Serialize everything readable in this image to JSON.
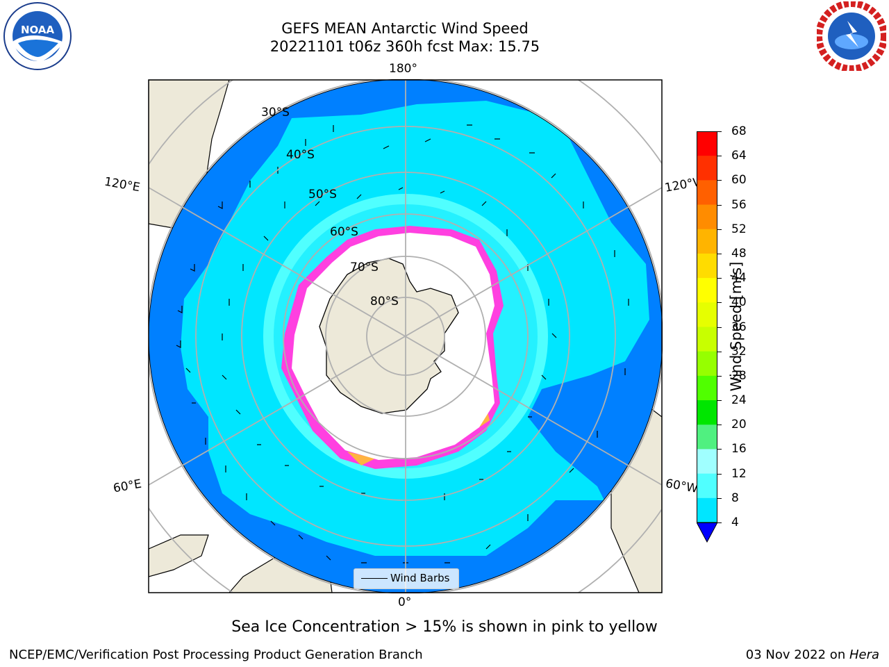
{
  "header": {
    "title_line1": "GEFS MEAN Antarctic Wind Speed",
    "title_line2": "20221101 t06z 360h fcst   Max: 15.75"
  },
  "logos": {
    "left": "noaa-logo",
    "right": "national-weather-service-logo"
  },
  "map": {
    "projection": "south-polar-stereographic",
    "lon_labels": {
      "top": "180°",
      "upper_left": "120°E",
      "upper_right": "120°W",
      "lower_left": "60°E",
      "lower_right": "60°W",
      "bottom": "0°"
    },
    "lat_labels": [
      "30°S",
      "40°S",
      "50°S",
      "60°S",
      "70°S",
      "80°S"
    ],
    "legend_label": "Wind Barbs",
    "colors": {
      "land": "#ede9d9",
      "open_ocean_low": "#0080ff",
      "ocean_mid": "#00e6ff",
      "ocean_high": "#50ffff",
      "ice_edge": "#ff40e0",
      "ice_high": "#ffc030"
    }
  },
  "colorbar": {
    "label": "Wind Speed [m/s]",
    "ticks": [
      "68",
      "64",
      "60",
      "56",
      "52",
      "48",
      "44",
      "40",
      "36",
      "32",
      "28",
      "24",
      "20",
      "16",
      "12",
      "8",
      "4"
    ],
    "colors": [
      "#ff0000",
      "#ff3000",
      "#ff6000",
      "#ff8c00",
      "#ffb400",
      "#ffdc00",
      "#ffff00",
      "#e6ff00",
      "#c8ff00",
      "#96ff00",
      "#50ff00",
      "#00e600",
      "#50f080",
      "#a0ffff",
      "#50ffff",
      "#00e6ff",
      "#0080ff"
    ],
    "extend_color": "#0000ff"
  },
  "caption": "Sea Ice Concentration > 15% is shown in pink to yellow",
  "footer": {
    "left": "NCEP/EMC/Verification Post Processing Product Generation Branch",
    "date": "03 Nov 2022 on ",
    "machine": "Hera"
  }
}
